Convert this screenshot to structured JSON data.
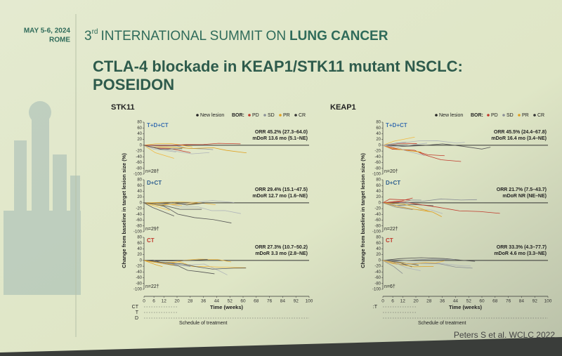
{
  "header": {
    "date": "MAY 5-6, 2024",
    "city": "ROME",
    "summit_number": "3",
    "summit_sup": "rd",
    "summit_text": "INTERNATIONAL SUMMIT ON",
    "summit_bold": "LUNG CANCER"
  },
  "title": "CTLA-4 blockade in KEAP1/STK11 mutant NSCLC: POSEIDON",
  "source": "Peters S et al. WCLC 2022",
  "panels": [
    {
      "label": "STK11",
      "legend_new": "New lesion",
      "legend_bor": "BOR:",
      "legend_items": [
        "PD",
        "SD",
        "PR",
        "CR"
      ],
      "y_label": "Change from baseline in target lesion size (%)",
      "x_label": "Time (weeks)",
      "schedule_label": "Schedule of treatment",
      "schedule_rows": [
        "CT",
        "T",
        "D"
      ],
      "yticks": [
        80,
        60,
        40,
        20,
        0,
        -20,
        -40,
        -60,
        -80,
        -100
      ],
      "xticks": [
        0,
        6,
        12,
        20,
        28,
        36,
        44,
        52,
        60,
        68,
        76,
        84,
        92,
        100
      ],
      "arms": [
        {
          "name": "T+D+CT",
          "color": "#3a6fb0",
          "orr": "ORR 45.2% (27.3–64.0)",
          "mdor": "mDoR 13.6 mo (5.1–NE)",
          "n": "n=28†"
        },
        {
          "name": "D+CT",
          "color": "#2f5f8f",
          "orr": "ORR 29.4% (15.1–47.5)",
          "mdor": "mDoR 12.7 mo (1.6–NE)",
          "n": "n=29†"
        },
        {
          "name": "CT",
          "color": "#c0392b",
          "orr": "ORR 27.3% (10.7–50.2)",
          "mdor": "mDoR 3.3 mo (2.8–NE)",
          "n": "n=22†"
        }
      ]
    },
    {
      "label": "KEAP1",
      "legend_new": "New lesion",
      "legend_bor": "BOR:",
      "legend_items": [
        "PD",
        "SD",
        "PR",
        "CR"
      ],
      "y_label": "Change from baseline in target lesion size (%)",
      "x_label": "Time (weeks)",
      "schedule_label": "Schedule of treatment",
      "schedule_rows": [
        ":T"
      ],
      "yticks": [
        80,
        60,
        40,
        20,
        0,
        -20,
        -40,
        -60,
        -80,
        -100
      ],
      "xticks": [
        0,
        6,
        12,
        20,
        28,
        36,
        44,
        52,
        60,
        68,
        76,
        84,
        92,
        100
      ],
      "arms": [
        {
          "name": "T+D+CT",
          "color": "#3a6fb0",
          "orr": "ORR 45.5% (24.4–67.8)",
          "mdor": "mDoR 16.4 mo (3.4–NE)",
          "n": "n=20†"
        },
        {
          "name": "D+CT",
          "color": "#2f5f8f",
          "orr": "ORR 21.7% (7.5–43.7)",
          "mdor": "mDoR NR (NE–NE)",
          "n": "n=22†"
        },
        {
          "name": "CT",
          "color": "#c0392b",
          "orr": "ORR 33.3% (4.3–77.7)",
          "mdor": "mDoR 4.6 mo (3.3–NE)",
          "n": "n=6†"
        }
      ]
    }
  ]
}
